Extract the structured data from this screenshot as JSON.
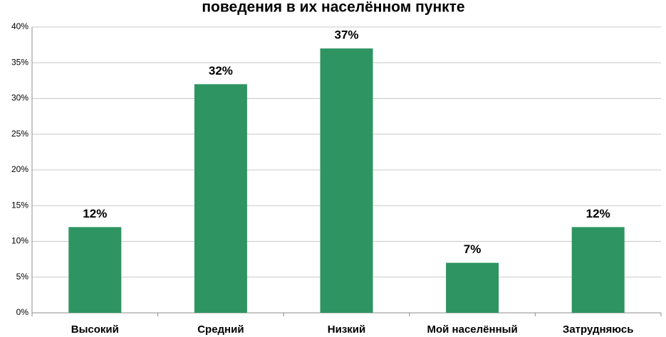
{
  "chart_data": {
    "type": "bar",
    "title": "поведения  в их населённом пункте",
    "categories": [
      "Высокий",
      "Средний",
      "Низкий",
      "Мой населённый",
      "Затрудняюсь"
    ],
    "values": [
      12,
      32,
      37,
      7,
      12
    ],
    "value_labels": [
      "12%",
      "32%",
      "37%",
      "7%",
      "12%"
    ],
    "color": "#2e9462",
    "ylim": [
      0,
      40
    ],
    "yticks": [
      {
        "value": 0,
        "label": "0%"
      },
      {
        "value": 5,
        "label": "5%"
      },
      {
        "value": 10,
        "label": "10%"
      },
      {
        "value": 15,
        "label": "15%"
      },
      {
        "value": 20,
        "label": "20%"
      },
      {
        "value": 25,
        "label": "25%"
      },
      {
        "value": 30,
        "label": "30%"
      },
      {
        "value": 35,
        "label": "35%"
      },
      {
        "value": 40,
        "label": "40%"
      }
    ],
    "grid": true
  }
}
